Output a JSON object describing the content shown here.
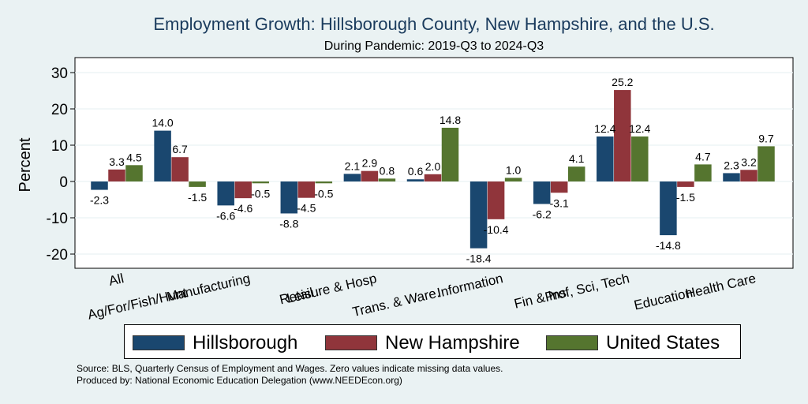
{
  "header": {
    "title": "Employment Growth: Hillsborough County, New Hampshire, and the U.S.",
    "subtitle": "During Pandemic: 2019-Q3 to 2024-Q3"
  },
  "footer": {
    "source": "Source: BLS, Quarterly Census of Employment and Wages. Zero values indicate missing data values.",
    "produced": "Produced by: National Economic Education Delegation (www.NEEDEcon.org)"
  },
  "chart_data": {
    "type": "bar",
    "ylabel": "Percent",
    "xlabel": "",
    "ylim": [
      -25,
      33
    ],
    "yticks": [
      -20,
      -10,
      0,
      10,
      20,
      30
    ],
    "grid": true,
    "legend_position": "bottom",
    "categories": [
      "All",
      "Ag/For/Fish/Hunt",
      "Manufacturing",
      "Retail",
      "Leisure & Hosp",
      "Trans. & Ware.",
      "Information",
      "Fin & Ins",
      "Prof, Sci, Tech",
      "Education",
      "Health Care"
    ],
    "series": [
      {
        "name": "Hillsborough",
        "color": "#1a476f",
        "values": [
          -2.3,
          14.0,
          -6.6,
          -8.8,
          2.1,
          0.6,
          -18.4,
          -6.2,
          12.4,
          -14.8,
          2.3
        ]
      },
      {
        "name": "New Hampshire",
        "color": "#90353b",
        "values": [
          3.3,
          6.7,
          -4.6,
          -4.5,
          2.9,
          2.0,
          -10.4,
          -3.1,
          25.2,
          -1.5,
          3.2
        ]
      },
      {
        "name": "United States",
        "color": "#55752f",
        "values": [
          4.5,
          -1.5,
          -0.5,
          -0.5,
          0.8,
          14.8,
          1.0,
          4.1,
          12.4,
          4.7,
          9.7
        ]
      }
    ]
  }
}
